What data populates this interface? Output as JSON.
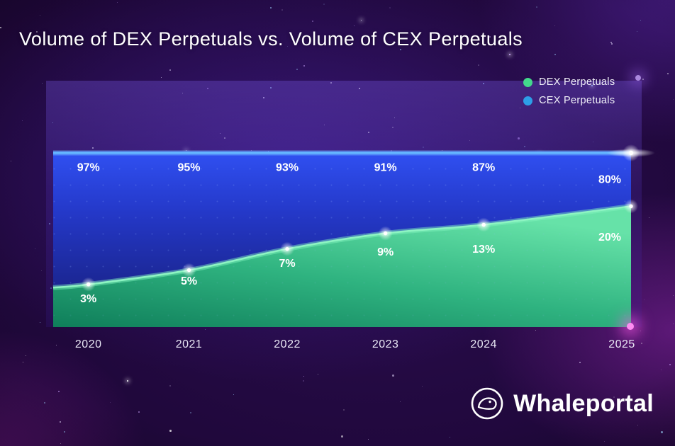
{
  "header": {
    "title": "Volume of DEX Perpetuals vs. Volume of CEX Perpetuals"
  },
  "legend": {
    "items": [
      {
        "label": "DEX Perpetuals",
        "color": "#43d98c"
      },
      {
        "label": "CEX Perpetuals",
        "color": "#2d9fe8"
      }
    ]
  },
  "footer": {
    "logo_text": "Whaleportal"
  },
  "chart_data": {
    "type": "area",
    "variant": "100-percent-stacked",
    "title": "Volume of DEX Perpetuals vs. Volume of CEX Perpetuals",
    "categories": [
      "2020",
      "2021",
      "2022",
      "2023",
      "2024",
      "2025"
    ],
    "series": [
      {
        "name": "DEX Perpetuals",
        "color": "#43d98c",
        "values": [
          3,
          5,
          7,
          9,
          13,
          20
        ]
      },
      {
        "name": "CEX Perpetuals",
        "color": "#2e4df0",
        "values": [
          97,
          95,
          93,
          91,
          87,
          80
        ]
      }
    ],
    "value_suffix": "%",
    "ylim": [
      0,
      100
    ],
    "legend_position": "top-right",
    "grid": "dot-matrix"
  }
}
